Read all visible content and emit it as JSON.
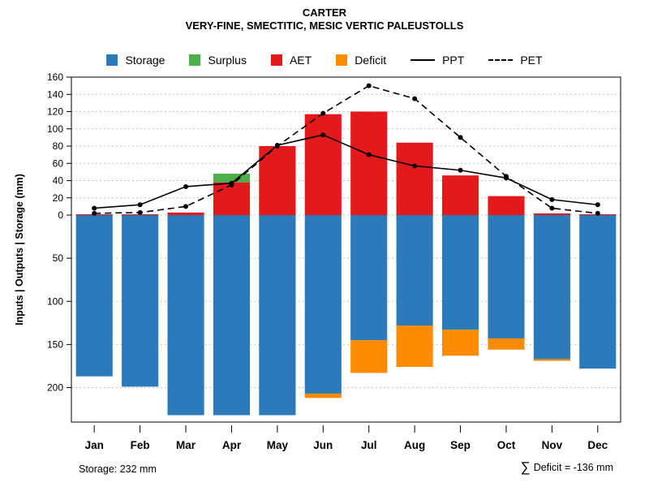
{
  "header": {
    "title": "CARTER",
    "subtitle": "VERY-FINE, SMECTITIC, MESIC VERTIC PALEUSTOLLS"
  },
  "legend": {
    "items": [
      {
        "label": "Storage",
        "color": "#2B7BBA",
        "type": "box"
      },
      {
        "label": "Surplus",
        "color": "#4CB04A",
        "type": "box"
      },
      {
        "label": "AET",
        "color": "#E31A1C",
        "type": "box"
      },
      {
        "label": "Deficit",
        "color": "#FF8C00",
        "type": "box"
      },
      {
        "label": "PPT",
        "color": "#000000",
        "type": "line-solid"
      },
      {
        "label": "PET",
        "color": "#000000",
        "type": "line-dashed"
      }
    ]
  },
  "chart_data": {
    "type": "bar",
    "title": "CARTER",
    "subtitle": "VERY-FINE, SMECTITIC, MESIC VERTIC PALEUSTOLLS",
    "xlabel": "",
    "ylabel": "Inputs | Outputs | Storage  (mm)",
    "categories": [
      "Jan",
      "Feb",
      "Mar",
      "Apr",
      "May",
      "Jun",
      "Jul",
      "Aug",
      "Sep",
      "Oct",
      "Nov",
      "Dec"
    ],
    "series": [
      {
        "name": "AET",
        "kind": "bar",
        "direction": "up",
        "color": "#E31A1C",
        "values": [
          1,
          1,
          3,
          38,
          80,
          117,
          120,
          84,
          46,
          22,
          2,
          1
        ]
      },
      {
        "name": "Surplus",
        "kind": "bar",
        "direction": "up",
        "stack_on": "AET",
        "color": "#4CB04A",
        "values": [
          0,
          0,
          0,
          10,
          0,
          0,
          0,
          0,
          0,
          0,
          0,
          0
        ]
      },
      {
        "name": "Storage",
        "kind": "bar",
        "direction": "down",
        "color": "#2B7BBA",
        "values": [
          187,
          199,
          232,
          232,
          232,
          207,
          145,
          128,
          133,
          143,
          167,
          178
        ]
      },
      {
        "name": "Deficit",
        "kind": "bar",
        "direction": "down",
        "stack_on": "Storage",
        "color": "#FF8C00",
        "values": [
          0,
          0,
          0,
          0,
          0,
          5,
          38,
          48,
          30,
          13,
          2,
          0
        ]
      },
      {
        "name": "PPT",
        "kind": "line",
        "style": "solid",
        "color": "#000000",
        "values": [
          8,
          12,
          33,
          37,
          81,
          93,
          70,
          57,
          52,
          43,
          18,
          12
        ]
      },
      {
        "name": "PET",
        "kind": "line",
        "style": "dashed",
        "color": "#000000",
        "values": [
          2,
          3,
          10,
          35,
          80,
          118,
          150,
          135,
          90,
          45,
          8,
          2
        ]
      }
    ],
    "upper_axis": {
      "ticks": [
        0,
        20,
        40,
        60,
        80,
        100,
        120,
        140,
        160
      ],
      "max": 160
    },
    "lower_axis": {
      "ticks": [
        50,
        100,
        150,
        200
      ],
      "max": 240
    },
    "grid": true,
    "legend_position": "top"
  },
  "footer": {
    "storage_text": "Storage: 232 mm",
    "sigma": "∑",
    "deficit_text": "Deficit = -136 mm"
  }
}
